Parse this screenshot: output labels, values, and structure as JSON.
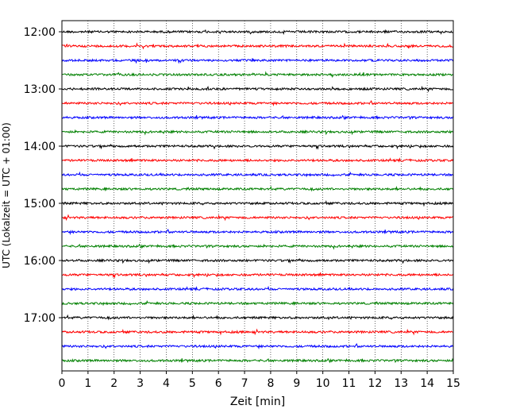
{
  "chart_data": {
    "type": "line",
    "title": "",
    "xlabel": "Zeit  [min]",
    "ylabel": "UTC (Lokalzeit = UTC + 01:00)",
    "xlim": [
      0,
      15
    ],
    "x_ticks": [
      0,
      1,
      2,
      3,
      4,
      5,
      6,
      7,
      8,
      9,
      10,
      11,
      12,
      13,
      14,
      15
    ],
    "y_ticks": [
      "12:00",
      "13:00",
      "14:00",
      "15:00",
      "16:00",
      "17:00"
    ],
    "grid": "vertical dotted",
    "trace_interval_min": 15,
    "start_time": "12:00",
    "traces": [
      {
        "time": "12:00",
        "color": "#000000"
      },
      {
        "time": "12:15",
        "color": "#ff0000"
      },
      {
        "time": "12:30",
        "color": "#0000ff"
      },
      {
        "time": "12:45",
        "color": "#008000"
      },
      {
        "time": "13:00",
        "color": "#000000"
      },
      {
        "time": "13:15",
        "color": "#ff0000"
      },
      {
        "time": "13:30",
        "color": "#0000ff"
      },
      {
        "time": "13:45",
        "color": "#008000"
      },
      {
        "time": "14:00",
        "color": "#000000"
      },
      {
        "time": "14:15",
        "color": "#ff0000"
      },
      {
        "time": "14:30",
        "color": "#0000ff"
      },
      {
        "time": "14:45",
        "color": "#008000"
      },
      {
        "time": "15:00",
        "color": "#000000"
      },
      {
        "time": "15:15",
        "color": "#ff0000"
      },
      {
        "time": "15:30",
        "color": "#0000ff"
      },
      {
        "time": "15:45",
        "color": "#008000"
      },
      {
        "time": "16:00",
        "color": "#000000"
      },
      {
        "time": "16:15",
        "color": "#ff0000"
      },
      {
        "time": "16:30",
        "color": "#0000ff"
      },
      {
        "time": "16:45",
        "color": "#008000"
      },
      {
        "time": "17:00",
        "color": "#000000"
      },
      {
        "time": "17:15",
        "color": "#ff0000"
      },
      {
        "time": "17:30",
        "color": "#0000ff"
      },
      {
        "time": "17:45",
        "color": "#008000"
      }
    ]
  }
}
